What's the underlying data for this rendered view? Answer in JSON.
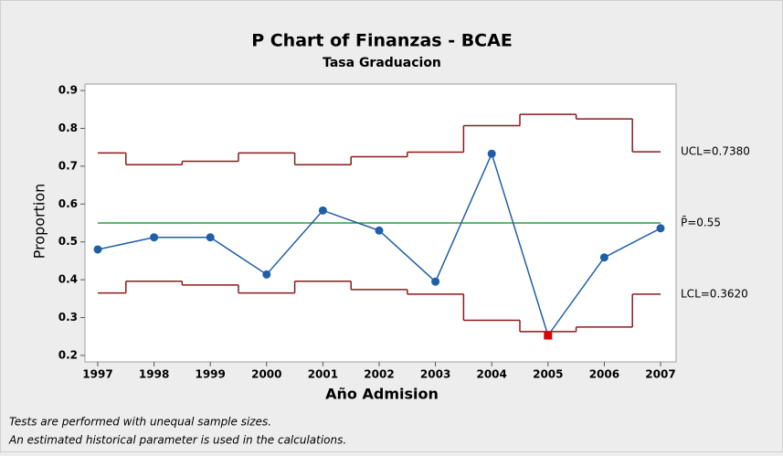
{
  "chart_data": {
    "type": "p-chart",
    "title": "P Chart of Finanzas - BCAE",
    "subtitle": "Tasa Graduacion",
    "x_label": "Año Admision",
    "y_label": "Proportion",
    "categories": [
      "1997",
      "1998",
      "1999",
      "2000",
      "2001",
      "2002",
      "2003",
      "2004",
      "2005",
      "2006",
      "2007"
    ],
    "series": [
      {
        "color": "#1f5fa8",
        "values": [
          0.48,
          0.512,
          0.512,
          0.414,
          0.583,
          0.53,
          0.395,
          0.733,
          0.253,
          0.459,
          0.536
        ]
      }
    ],
    "flagged_points": [
      8
    ],
    "flag_color": "#e00000",
    "limits": [
      {
        "label": "UCL=0.7380",
        "value": 0.738,
        "color": "#8b1a1a",
        "values": [
          0.735,
          0.704,
          0.713,
          0.735,
          0.704,
          0.725,
          0.737,
          0.807,
          0.837,
          0.825,
          0.738
        ]
      },
      {
        "label": "P̄=0.55",
        "value": 0.55,
        "color": "#2e9e3e"
      },
      {
        "label": "LCL=0.3620",
        "value": 0.362,
        "color": "#8b1a1a",
        "values": [
          0.365,
          0.396,
          0.386,
          0.365,
          0.396,
          0.374,
          0.362,
          0.293,
          0.263,
          0.275,
          0.362
        ]
      }
    ],
    "ylim": [
      0.183,
      0.917
    ],
    "yticks": [
      {
        "value": 0.2,
        "label": "0.2"
      },
      {
        "value": 0.3,
        "label": "0.3"
      },
      {
        "value": 0.4,
        "label": "0.4"
      },
      {
        "value": 0.5,
        "label": "0.5"
      },
      {
        "value": 0.6,
        "label": "0.6"
      },
      {
        "value": 0.7,
        "label": "0.7"
      },
      {
        "value": 0.8,
        "label": "0.8"
      },
      {
        "value": 0.9,
        "label": "0.9"
      }
    ],
    "footnotes": [
      "Tests are performed with unequal sample sizes.",
      "An estimated historical parameter is used in the calculations."
    ]
  }
}
